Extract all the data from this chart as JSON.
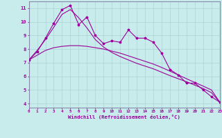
{
  "xlabel": "Windchill (Refroidissement éolien,°C)",
  "bg_color": "#c8ecec",
  "grid_color": "#b0d8d8",
  "line_color": "#990099",
  "x_ticks": [
    0,
    1,
    2,
    3,
    4,
    5,
    6,
    7,
    8,
    9,
    10,
    11,
    12,
    13,
    14,
    15,
    16,
    17,
    18,
    19,
    20,
    21,
    22,
    23
  ],
  "y_ticks": [
    4,
    5,
    6,
    7,
    8,
    9,
    10,
    11
  ],
  "ylim": [
    3.7,
    11.5
  ],
  "xlim": [
    0,
    23
  ],
  "series1_zigzag": {
    "x": [
      0,
      1,
      2,
      3,
      4,
      5,
      6,
      7,
      8,
      9,
      10,
      11,
      12,
      13,
      14,
      15,
      16,
      17,
      18,
      19,
      20,
      21,
      22,
      23
    ],
    "y": [
      7.2,
      7.8,
      8.8,
      9.9,
      10.9,
      11.2,
      9.8,
      10.35,
      9.0,
      8.4,
      8.6,
      8.5,
      9.4,
      8.8,
      8.8,
      8.5,
      7.7,
      6.5,
      6.1,
      5.5,
      5.5,
      5.0,
      4.5,
      4.1
    ]
  },
  "series2_upper": {
    "x": [
      0,
      1,
      2,
      3,
      4,
      5,
      6,
      7,
      8,
      9,
      10,
      11,
      12,
      13,
      14,
      15,
      16,
      17,
      18,
      19,
      20,
      21,
      22,
      23
    ],
    "y": [
      7.2,
      7.9,
      8.7,
      9.6,
      10.55,
      10.9,
      10.3,
      9.55,
      8.7,
      8.15,
      7.75,
      7.45,
      7.2,
      6.95,
      6.75,
      6.55,
      6.3,
      6.05,
      5.82,
      5.6,
      5.35,
      5.1,
      4.8,
      4.1
    ]
  },
  "series3_lower": {
    "x": [
      0,
      1,
      2,
      3,
      4,
      5,
      6,
      7,
      8,
      9,
      10,
      11,
      12,
      13,
      14,
      15,
      16,
      17,
      18,
      19,
      20,
      21,
      22,
      23
    ],
    "y": [
      7.2,
      7.55,
      7.9,
      8.1,
      8.2,
      8.25,
      8.25,
      8.2,
      8.1,
      8.0,
      7.85,
      7.7,
      7.5,
      7.3,
      7.1,
      6.9,
      6.65,
      6.38,
      6.1,
      5.82,
      5.55,
      5.28,
      5.0,
      4.1
    ]
  }
}
